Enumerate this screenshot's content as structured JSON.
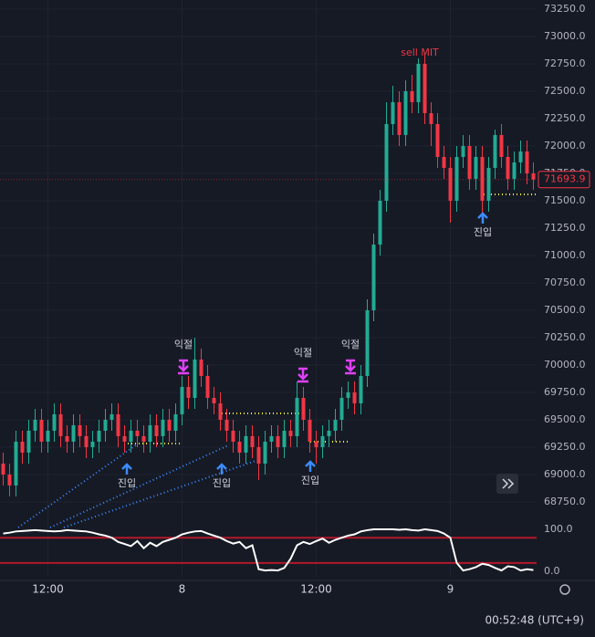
{
  "chart_data": [
    {
      "type": "candlestick",
      "categories": [
        null,
        null,
        null,
        null,
        null,
        null,
        null,
        "12:00",
        null,
        null,
        null,
        null,
        null,
        null,
        null,
        null,
        null,
        null,
        null,
        null,
        null,
        null,
        null,
        null,
        null,
        null,
        null,
        null,
        "8",
        null,
        null,
        null,
        null,
        null,
        null,
        null,
        null,
        null,
        null,
        null,
        null,
        null,
        null,
        null,
        null,
        null,
        null,
        null,
        null,
        "12:00",
        null,
        null,
        null,
        null,
        null,
        null,
        null,
        null,
        null,
        null,
        null,
        null,
        null,
        null,
        null,
        null,
        null,
        null,
        null,
        null,
        "9",
        null,
        null,
        null,
        null,
        null,
        null,
        null,
        null,
        null,
        null,
        null,
        null,
        null
      ],
      "open": [
        69100,
        69000,
        68900,
        69300,
        69200,
        69400,
        69500,
        69300,
        69400,
        69550,
        69350,
        69300,
        69450,
        69350,
        69250,
        69300,
        69400,
        69500,
        69550,
        69350,
        69300,
        69400,
        69350,
        69300,
        69450,
        69350,
        69500,
        69400,
        69550,
        69800,
        69700,
        70050,
        69900,
        69700,
        69650,
        69500,
        69400,
        69300,
        69200,
        69350,
        69250,
        69100,
        69300,
        69350,
        69250,
        69400,
        69350,
        69700,
        69500,
        69300,
        69250,
        69350,
        69400,
        69500,
        69700,
        69750,
        69650,
        69900,
        70500,
        71100,
        71500,
        72200,
        72400,
        72100,
        72500,
        72400,
        72750,
        72300,
        72200,
        71900,
        71800,
        71500,
        71900,
        72000,
        71700,
        71900,
        71500,
        71800,
        72100,
        71900,
        71700,
        71850,
        71950,
        71750
      ],
      "high": [
        69200,
        69100,
        69400,
        69400,
        69500,
        69600,
        69600,
        69500,
        69650,
        69650,
        69450,
        69550,
        69550,
        69450,
        69400,
        69500,
        69600,
        69650,
        69650,
        69450,
        69500,
        69500,
        69450,
        69550,
        69550,
        69600,
        69600,
        69650,
        69900,
        69900,
        70250,
        70150,
        70000,
        69800,
        69750,
        69600,
        69500,
        69400,
        69450,
        69450,
        69350,
        69400,
        69450,
        69450,
        69500,
        69500,
        69850,
        69800,
        69600,
        69400,
        69450,
        69500,
        69600,
        69800,
        69850,
        69850,
        70000,
        70600,
        71200,
        71600,
        72400,
        72550,
        72500,
        72600,
        72650,
        72800,
        72850,
        72400,
        72300,
        72000,
        71900,
        72000,
        72100,
        72100,
        72000,
        72000,
        71900,
        72150,
        72200,
        72000,
        71950,
        72050,
        72050,
        71850
      ],
      "low": [
        68900,
        68800,
        68800,
        69100,
        69100,
        69300,
        69200,
        69200,
        69300,
        69250,
        69200,
        69200,
        69250,
        69150,
        69150,
        69200,
        69300,
        69400,
        69250,
        69200,
        69200,
        69250,
        69200,
        69200,
        69250,
        69250,
        69300,
        69300,
        69450,
        69600,
        69600,
        69800,
        69600,
        69550,
        69400,
        69300,
        69200,
        69100,
        69100,
        69150,
        68950,
        69000,
        69200,
        69150,
        69150,
        69250,
        69250,
        69400,
        69200,
        69100,
        69150,
        69250,
        69300,
        69400,
        69600,
        69550,
        69550,
        69800,
        70400,
        71000,
        71400,
        72100,
        72000,
        72000,
        72300,
        72300,
        72200,
        72000,
        71800,
        71700,
        71300,
        71400,
        71800,
        71600,
        71600,
        71350,
        71400,
        71700,
        71800,
        71600,
        71600,
        71750,
        71650,
        71600
      ],
      "close": [
        69000,
        68900,
        69300,
        69200,
        69400,
        69500,
        69300,
        69400,
        69550,
        69350,
        69300,
        69450,
        69350,
        69250,
        69300,
        69400,
        69500,
        69550,
        69350,
        69300,
        69400,
        69350,
        69300,
        69450,
        69350,
        69500,
        69400,
        69550,
        69800,
        69700,
        70050,
        69900,
        69700,
        69650,
        69500,
        69400,
        69300,
        69200,
        69350,
        69250,
        69100,
        69300,
        69350,
        69250,
        69400,
        69350,
        69700,
        69500,
        69300,
        69250,
        69350,
        69400,
        69500,
        69700,
        69750,
        69650,
        69900,
        70500,
        71100,
        71500,
        72200,
        72400,
        72100,
        72500,
        72400,
        72750,
        72300,
        72200,
        71900,
        71800,
        71500,
        71900,
        72000,
        71700,
        71900,
        71500,
        71800,
        72100,
        71900,
        71700,
        71850,
        71950,
        71750,
        71693.9
      ],
      "up_color": "#22ab94",
      "down_color": "#f23645",
      "ylim": [
        68583,
        73333
      ],
      "yticks": [
        {
          "value": 73250,
          "label": "73250.0"
        },
        {
          "value": 73000,
          "label": "73000.0"
        },
        {
          "value": 72750,
          "label": "72750.0"
        },
        {
          "value": 72500,
          "label": "72500.0"
        },
        {
          "value": 72250,
          "label": "72250.0"
        },
        {
          "value": 72000,
          "label": "72000.0"
        },
        {
          "value": 71750,
          "label": "71750.0"
        },
        {
          "value": 71500,
          "label": "71500.0"
        },
        {
          "value": 71250,
          "label": "71250.0"
        },
        {
          "value": 71000,
          "label": "71000.0"
        },
        {
          "value": 70750,
          "label": "70750.0"
        },
        {
          "value": 70500,
          "label": "70500.0"
        },
        {
          "value": 70250,
          "label": "70250.0"
        },
        {
          "value": 70000,
          "label": "70000.0"
        },
        {
          "value": 69750,
          "label": "69750.0"
        },
        {
          "value": 69500,
          "label": "69500.0"
        },
        {
          "value": 69250,
          "label": "69250.0"
        },
        {
          "value": 69000,
          "label": "69000.0"
        },
        {
          "value": 68750,
          "label": "68750.0"
        }
      ],
      "grid": true,
      "annotations": [
        "sell MIT",
        "익절",
        "익절",
        "익절",
        "진입",
        "진입",
        "진입",
        "진입"
      ]
    },
    {
      "type": "line",
      "values": [
        90,
        92,
        95,
        96,
        97,
        98,
        97,
        96,
        95,
        96,
        98,
        97,
        96,
        95,
        92,
        88,
        85,
        80,
        70,
        65,
        60,
        72,
        55,
        68,
        60,
        70,
        75,
        80,
        88,
        92,
        95,
        96,
        90,
        85,
        80,
        72,
        66,
        70,
        55,
        62,
        5,
        2,
        3,
        2,
        8,
        30,
        62,
        70,
        65,
        72,
        78,
        68,
        75,
        80,
        85,
        88,
        95,
        98,
        100,
        100,
        100,
        100,
        99,
        100,
        98,
        97,
        100,
        98,
        96,
        90,
        80,
        20,
        2,
        5,
        10,
        18,
        15,
        8,
        2,
        12,
        10,
        2,
        5,
        3
      ],
      "color": "#ffffff",
      "ylim": [
        -13,
        117.4
      ],
      "yticks": [
        {
          "value": 100,
          "label": "100.0"
        },
        {
          "value": 0,
          "label": "0.0"
        }
      ],
      "levels": [
        80,
        20
      ],
      "level_color": "#b2182b"
    }
  ],
  "clock": "00:52:48 (UTC+9)"
}
